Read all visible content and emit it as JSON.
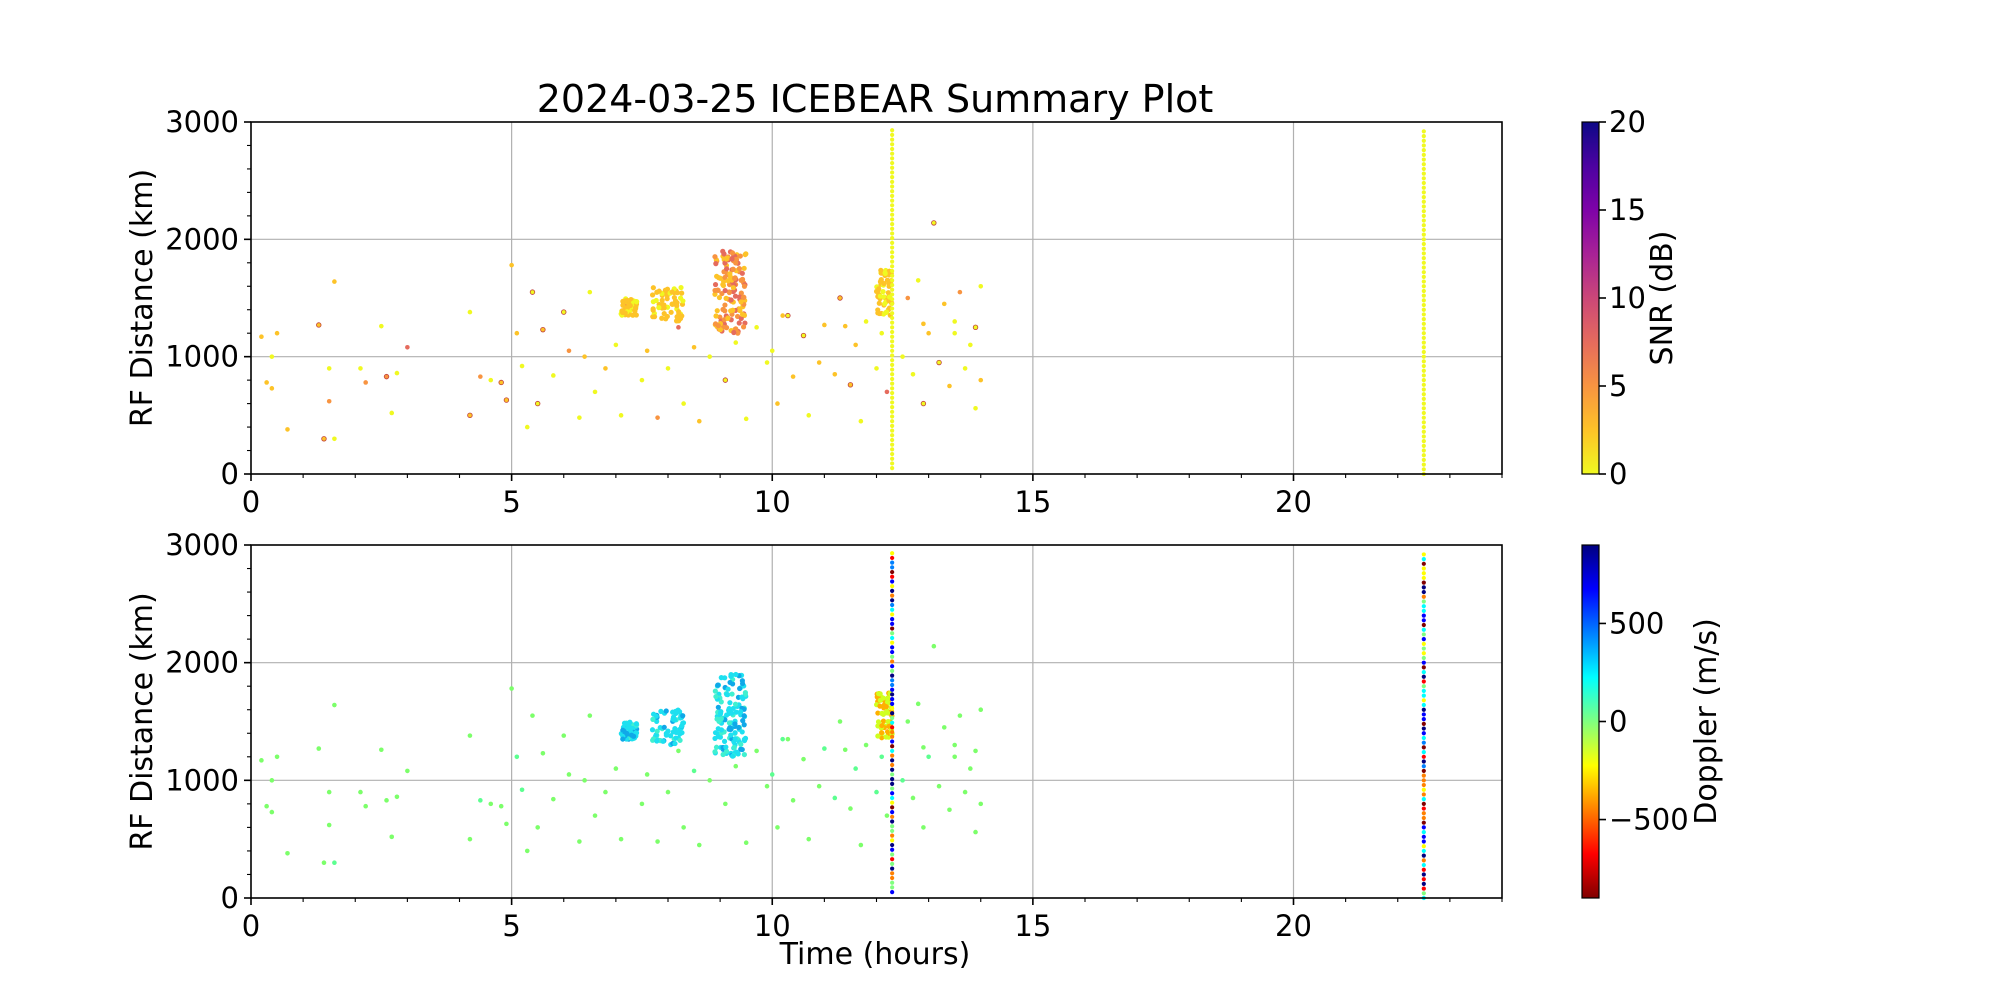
{
  "chart_data": [
    {
      "type": "scatter",
      "title": "2024-03-25 ICEBEAR Summary Plot",
      "xlabel": "",
      "ylabel": "RF Distance (km)",
      "xlim": [
        0,
        24
      ],
      "ylim": [
        0,
        3000
      ],
      "xticks": [
        "0",
        "5",
        "10",
        "15",
        "20"
      ],
      "yticks": [
        "0",
        "1000",
        "2000",
        "3000"
      ],
      "grid": true,
      "colorbar": {
        "label": "SNR (dB)",
        "range": [
          0,
          20
        ],
        "ticks": [
          "0",
          "5",
          "10",
          "15",
          "20"
        ],
        "colormap": "plasma_r"
      },
      "vertical_lines": [
        {
          "x": 12.3,
          "y_range": [
            50,
            2950
          ]
        },
        {
          "x": 22.5,
          "y_range": [
            0,
            2950
          ]
        }
      ],
      "dense_clusters": [
        {
          "x_range": [
            7.1,
            7.4
          ],
          "y_range": [
            1350,
            1500
          ]
        },
        {
          "x_range": [
            7.7,
            8.3
          ],
          "y_range": [
            1300,
            1600
          ]
        },
        {
          "x_range": [
            8.9,
            9.5
          ],
          "y_range": [
            1200,
            1900
          ]
        },
        {
          "x_range": [
            12.0,
            12.3
          ],
          "y_range": [
            1350,
            1750
          ]
        }
      ],
      "points": [
        [
          0.2,
          1170
        ],
        [
          0.3,
          780
        ],
        [
          0.4,
          730
        ],
        [
          0.4,
          1000
        ],
        [
          0.5,
          1200
        ],
        [
          0.7,
          380
        ],
        [
          1.3,
          1270
        ],
        [
          1.4,
          300
        ],
        [
          1.5,
          900
        ],
        [
          1.5,
          620
        ],
        [
          1.6,
          300
        ],
        [
          1.6,
          1640
        ],
        [
          2.1,
          900
        ],
        [
          2.2,
          780
        ],
        [
          2.5,
          1260
        ],
        [
          2.6,
          830
        ],
        [
          2.7,
          520
        ],
        [
          2.8,
          860
        ],
        [
          3.0,
          1080
        ],
        [
          4.2,
          500
        ],
        [
          4.2,
          1380
        ],
        [
          4.4,
          830
        ],
        [
          4.6,
          800
        ],
        [
          4.8,
          780
        ],
        [
          4.9,
          630
        ],
        [
          5.0,
          1780
        ],
        [
          5.1,
          1200
        ],
        [
          5.2,
          920
        ],
        [
          5.3,
          400
        ],
        [
          5.4,
          1550
        ],
        [
          5.5,
          600
        ],
        [
          5.6,
          1230
        ],
        [
          5.8,
          840
        ],
        [
          6.0,
          1380
        ],
        [
          6.1,
          1050
        ],
        [
          6.3,
          480
        ],
        [
          6.4,
          1000
        ],
        [
          6.5,
          1550
        ],
        [
          6.6,
          700
        ],
        [
          6.8,
          900
        ],
        [
          7.0,
          1100
        ],
        [
          7.1,
          500
        ],
        [
          7.2,
          1450
        ],
        [
          7.5,
          800
        ],
        [
          7.6,
          1050
        ],
        [
          7.8,
          480
        ],
        [
          8.0,
          900
        ],
        [
          8.2,
          1250
        ],
        [
          8.3,
          600
        ],
        [
          8.5,
          1080
        ],
        [
          8.6,
          450
        ],
        [
          8.8,
          1000
        ],
        [
          9.1,
          800
        ],
        [
          9.3,
          1120
        ],
        [
          9.5,
          470
        ],
        [
          9.7,
          1250
        ],
        [
          9.9,
          950
        ],
        [
          10.0,
          1050
        ],
        [
          10.1,
          600
        ],
        [
          10.2,
          1350
        ],
        [
          10.4,
          830
        ],
        [
          10.6,
          1180
        ],
        [
          10.7,
          500
        ],
        [
          10.9,
          950
        ],
        [
          11.0,
          1270
        ],
        [
          11.2,
          850
        ],
        [
          11.3,
          1500
        ],
        [
          11.5,
          760
        ],
        [
          11.6,
          1100
        ],
        [
          11.7,
          450
        ],
        [
          11.8,
          1300
        ],
        [
          12.0,
          900
        ],
        [
          12.1,
          1200
        ],
        [
          12.2,
          700
        ],
        [
          12.5,
          1000
        ],
        [
          12.6,
          1500
        ],
        [
          12.7,
          850
        ],
        [
          12.8,
          1650
        ],
        [
          12.9,
          600
        ],
        [
          13.0,
          1200
        ],
        [
          13.1,
          2140
        ],
        [
          13.2,
          950
        ],
        [
          13.3,
          1450
        ],
        [
          13.4,
          750
        ],
        [
          13.5,
          1300
        ],
        [
          13.6,
          1550
        ],
        [
          13.7,
          900
        ],
        [
          13.8,
          1100
        ],
        [
          13.9,
          1250
        ],
        [
          14.0,
          800
        ],
        [
          14.0,
          1600
        ],
        [
          13.9,
          560
        ],
        [
          13.5,
          1200
        ],
        [
          12.9,
          1280
        ],
        [
          11.4,
          1260
        ],
        [
          10.3,
          1350
        ]
      ]
    },
    {
      "type": "scatter",
      "title": "",
      "xlabel": "Time (hours)",
      "ylabel": "RF Distance (km)",
      "xlim": [
        0,
        24
      ],
      "ylim": [
        0,
        3000
      ],
      "xticks": [
        "0",
        "5",
        "10",
        "15",
        "20"
      ],
      "yticks": [
        "0",
        "1000",
        "2000",
        "3000"
      ],
      "grid": true,
      "colorbar": {
        "label": "Doppler (m/s)",
        "range": [
          -900,
          900
        ],
        "ticks": [
          "−500",
          "0",
          "500"
        ],
        "tick_values": [
          -500,
          0,
          500
        ],
        "colormap": "jet_r"
      },
      "vertical_lines": [
        {
          "x": 12.3,
          "y_range": [
            50,
            2950
          ]
        },
        {
          "x": 22.5,
          "y_range": [
            0,
            2950
          ]
        }
      ],
      "dense_clusters": [
        {
          "x_range": [
            7.1,
            7.4
          ],
          "y_range": [
            1350,
            1500
          ]
        },
        {
          "x_range": [
            7.7,
            8.3
          ],
          "y_range": [
            1300,
            1600
          ]
        },
        {
          "x_range": [
            8.9,
            9.5
          ],
          "y_range": [
            1200,
            1900
          ]
        },
        {
          "x_range": [
            12.0,
            12.3
          ],
          "y_range": [
            1350,
            1750
          ]
        }
      ]
    }
  ]
}
